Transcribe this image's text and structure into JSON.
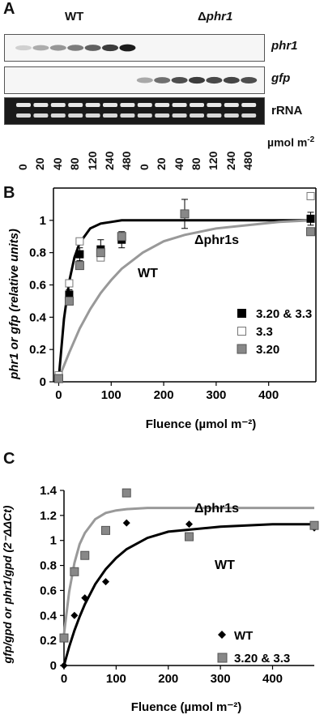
{
  "panelA": {
    "letter": "A",
    "group_left": "WT",
    "group_right_prefix": "Δ",
    "group_right_gene": "phr1",
    "rows": [
      {
        "label": "phr1"
      },
      {
        "label": "gfp"
      },
      {
        "label": "rRNA"
      }
    ],
    "lane_labels": [
      "0",
      "20",
      "40",
      "80",
      "120",
      "240",
      "480",
      "0",
      "20",
      "40",
      "80",
      "120",
      "240",
      "480"
    ],
    "unit_label": "µmol m",
    "unit_exponent": "-2",
    "band_intensity": {
      "phr1": [
        0.12,
        0.28,
        0.38,
        0.5,
        0.62,
        0.78,
        0.92,
        0,
        0,
        0,
        0,
        0,
        0,
        0
      ],
      "gfp": [
        0,
        0,
        0,
        0,
        0,
        0,
        0,
        0.3,
        0.55,
        0.7,
        0.78,
        0.72,
        0.74,
        0.7
      ]
    }
  },
  "panelB": {
    "letter": "B",
    "curve_label_1": "Δphr1s",
    "curve_label_2": "WT",
    "legend": [
      "3.20 & 3.3",
      "3.3",
      "3.20"
    ],
    "ylabel": "phr1 or gfp (relative units)",
    "xlabel": "Fluence (µmol m⁻²)"
  },
  "panelC": {
    "letter": "C",
    "curve_label_1": "Δphr1s",
    "curve_label_2": "WT",
    "legend": [
      "WT",
      "3.20 & 3.3"
    ],
    "ylabel": "gfp/gpd or phr1/gpd (2⁻ΔΔCt)",
    "xlabel": "Fluence (µmol m⁻²)"
  },
  "chart_data": [
    {
      "type": "scatter",
      "panel": "B",
      "xlabel": "Fluence (µmol m⁻²)",
      "ylabel": "phr1 or gfp (relative units)",
      "xlim": [
        -10,
        490
      ],
      "ylim": [
        0,
        1.2
      ],
      "xticks": [
        0,
        100,
        200,
        300,
        400
      ],
      "yticks": [
        0,
        0.2,
        0.4,
        0.6,
        0.8,
        1
      ],
      "series": [
        {
          "name": "3.20 & 3.3",
          "marker": "filled-black-square",
          "x": [
            0,
            20,
            40,
            80,
            120,
            240,
            480
          ],
          "y": [
            0.02,
            0.54,
            0.79,
            0.82,
            0.88,
            1.04,
            1.01
          ],
          "err": [
            0.01,
            0.03,
            0.04,
            0.06,
            0.05,
            0.09,
            0.04
          ]
        },
        {
          "name": "3.3",
          "marker": "open-square",
          "x": [
            0,
            20,
            40,
            80,
            480
          ],
          "y": [
            0.04,
            0.61,
            0.87,
            0.77,
            1.15
          ]
        },
        {
          "name": "3.20",
          "marker": "gray-square",
          "x": [
            0,
            20,
            40,
            80,
            120,
            240,
            480
          ],
          "y": [
            0.02,
            0.5,
            0.72,
            0.8,
            0.9,
            1.04,
            0.93
          ]
        }
      ],
      "curves": [
        {
          "name": "Δphr1s",
          "color": "#000000",
          "x": [
            0,
            10,
            20,
            30,
            40,
            60,
            80,
            100,
            120,
            160,
            200,
            240,
            300,
            400,
            480
          ],
          "y": [
            0.02,
            0.39,
            0.62,
            0.77,
            0.86,
            0.95,
            0.98,
            0.99,
            1.0,
            1.0,
            1.0,
            1.0,
            1.0,
            1.0,
            1.0
          ]
        },
        {
          "name": "WT",
          "color": "#999999",
          "x": [
            0,
            20,
            40,
            60,
            80,
            100,
            120,
            160,
            200,
            240,
            300,
            360,
            420,
            480
          ],
          "y": [
            0.02,
            0.18,
            0.33,
            0.45,
            0.55,
            0.63,
            0.7,
            0.8,
            0.87,
            0.91,
            0.95,
            0.97,
            0.99,
            1.0
          ]
        }
      ]
    },
    {
      "type": "scatter",
      "panel": "C",
      "xlabel": "Fluence (µmol m⁻²)",
      "ylabel": "gfp/gpd or phr1/gpd (2⁻ΔΔCt)",
      "xlim": [
        0,
        480
      ],
      "ylim": [
        0,
        1.4
      ],
      "xticks": [
        0,
        100,
        200,
        300,
        400
      ],
      "yticks": [
        0,
        0.2,
        0.4,
        0.6,
        0.8,
        1,
        1.2,
        1.4
      ],
      "series": [
        {
          "name": "WT",
          "marker": "black-diamond",
          "x": [
            0,
            20,
            40,
            80,
            120,
            240,
            480
          ],
          "y": [
            0.0,
            0.4,
            0.54,
            0.67,
            1.14,
            1.13,
            1.1
          ]
        },
        {
          "name": "3.20 & 3.3",
          "marker": "gray-square",
          "x": [
            0,
            20,
            40,
            80,
            120,
            240,
            480
          ],
          "y": [
            0.22,
            0.75,
            0.88,
            1.08,
            1.38,
            1.03,
            1.12
          ]
        }
      ],
      "curves": [
        {
          "name": "Δphr1s",
          "color": "#999999",
          "x": [
            0,
            10,
            20,
            30,
            40,
            60,
            80,
            100,
            120,
            160,
            200,
            300,
            400,
            480
          ],
          "y": [
            0.25,
            0.59,
            0.82,
            0.97,
            1.06,
            1.17,
            1.22,
            1.24,
            1.25,
            1.26,
            1.26,
            1.26,
            1.26,
            1.26
          ]
        },
        {
          "name": "WT",
          "color": "#000000",
          "x": [
            0,
            10,
            20,
            30,
            40,
            60,
            80,
            100,
            120,
            160,
            200,
            300,
            400,
            480
          ],
          "y": [
            0.0,
            0.15,
            0.28,
            0.39,
            0.49,
            0.65,
            0.77,
            0.86,
            0.93,
            1.02,
            1.07,
            1.11,
            1.13,
            1.13
          ]
        }
      ]
    }
  ]
}
